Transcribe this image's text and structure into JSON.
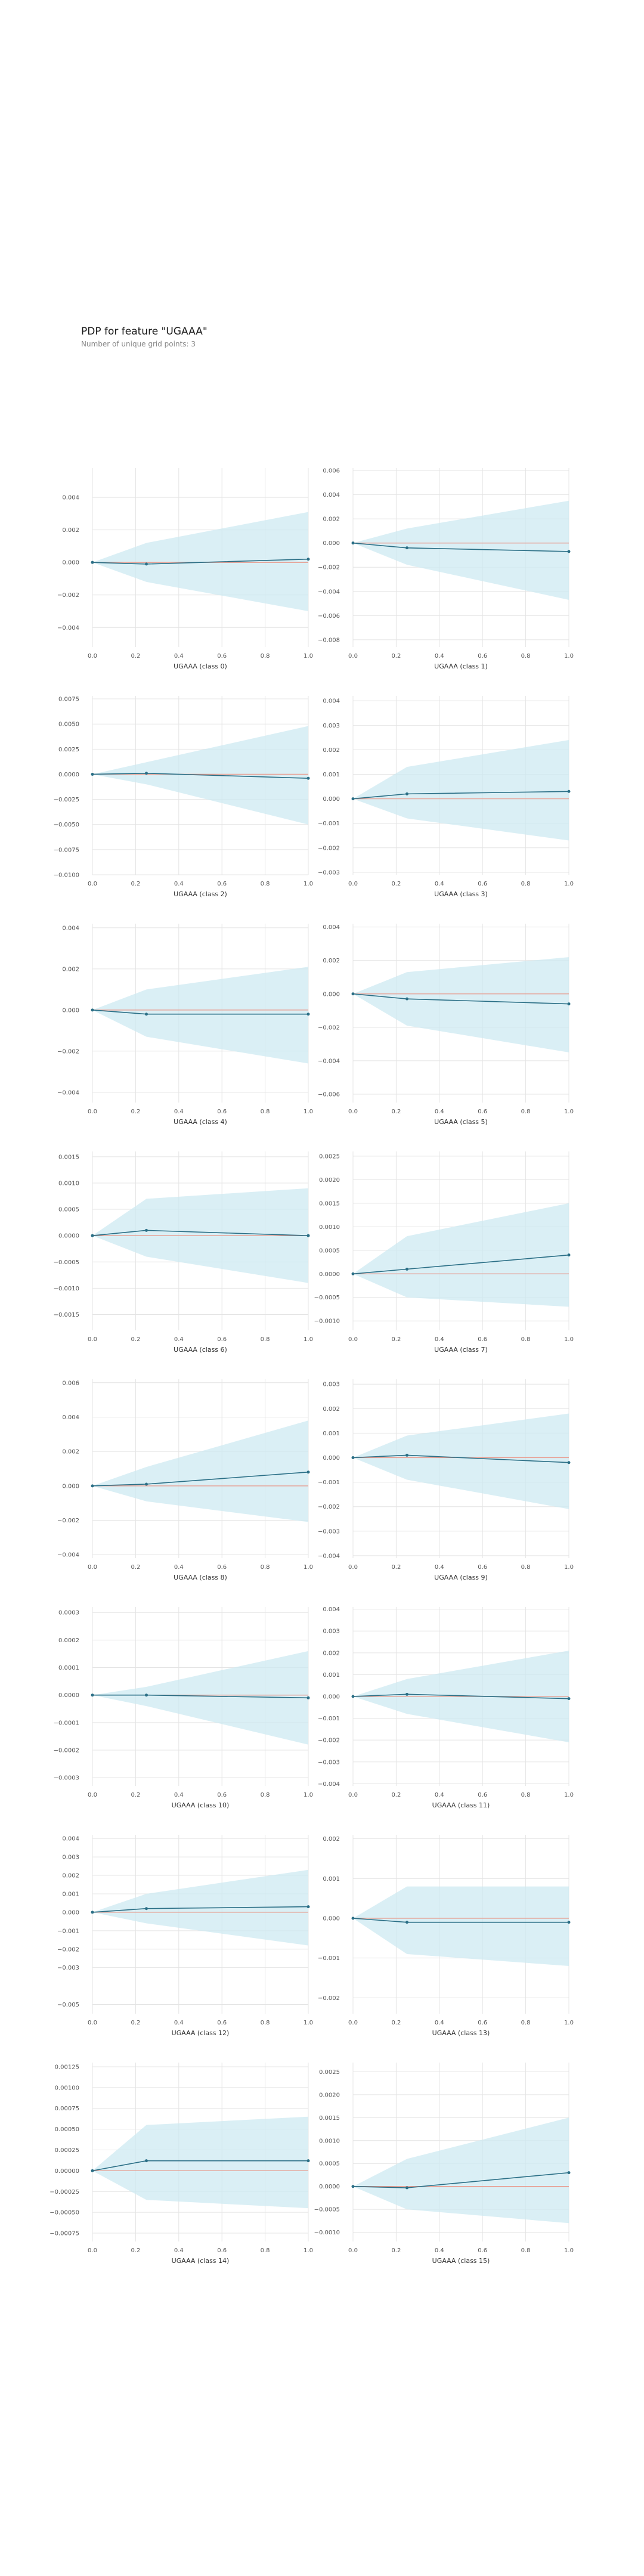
{
  "title": "PDP for feature \"UGAAA\"",
  "subtitle": "Number of unique grid points: 3",
  "colors": {
    "band": "#cde9f2",
    "line": "#2b6f86",
    "baseline": "#e89a8c",
    "grid": "#e4e4e4",
    "text": "#555555"
  },
  "chart_data": [
    {
      "type": "line",
      "xlabel": "UGAAA (class 0)",
      "x": [
        0,
        0.25,
        1
      ],
      "y": [
        0,
        -0.0001,
        0.0002
      ],
      "upper": [
        0,
        0.0012,
        0.0031
      ],
      "lower": [
        0,
        -0.0012,
        -0.003
      ],
      "ylim": [
        -0.0052,
        0.0058
      ],
      "yticks": [
        -0.004,
        -0.002,
        0,
        0.002,
        0.004
      ],
      "yticklabels": [
        "−0.004",
        "−0.002",
        "0.000",
        "0.002",
        "0.004"
      ],
      "xticks": [
        0,
        0.2,
        0.4,
        0.6,
        0.8,
        1
      ],
      "xticklabels": [
        "0.0",
        "0.2",
        "0.4",
        "0.6",
        "0.8",
        "1.0"
      ]
    },
    {
      "type": "line",
      "xlabel": "UGAAA (class 1)",
      "x": [
        0,
        0.25,
        1
      ],
      "y": [
        0,
        -0.0004,
        -0.0007
      ],
      "upper": [
        0,
        0.0012,
        0.0035
      ],
      "lower": [
        0,
        -0.0018,
        -0.0047
      ],
      "ylim": [
        -0.0086,
        0.0062
      ],
      "yticks": [
        -0.008,
        -0.006,
        -0.004,
        -0.002,
        0,
        0.002,
        0.004,
        0.006
      ],
      "yticklabels": [
        "−0.008",
        "−0.006",
        "−0.004",
        "−0.002",
        "0.000",
        "0.002",
        "0.004",
        "0.006"
      ],
      "xticks": [
        0,
        0.2,
        0.4,
        0.6,
        0.8,
        1
      ],
      "xticklabels": [
        "0.0",
        "0.2",
        "0.4",
        "0.6",
        "0.8",
        "1.0"
      ]
    },
    {
      "type": "line",
      "xlabel": "UGAAA (class 2)",
      "x": [
        0,
        0.25,
        1
      ],
      "y": [
        0,
        0.0001,
        -0.0004
      ],
      "upper": [
        0,
        0.0012,
        0.0048
      ],
      "lower": [
        0,
        -0.001,
        -0.005
      ],
      "ylim": [
        -0.01,
        0.0078
      ],
      "yticks": [
        -0.01,
        -0.0075,
        -0.005,
        -0.0025,
        0,
        0.0025,
        0.005,
        0.0075
      ],
      "yticklabels": [
        "−0.0100",
        "−0.0075",
        "−0.0050",
        "−0.0025",
        "0.0000",
        "0.0025",
        "0.0050",
        "0.0075"
      ],
      "xticks": [
        0,
        0.2,
        0.4,
        0.6,
        0.8,
        1
      ],
      "xticklabels": [
        "0.0",
        "0.2",
        "0.4",
        "0.6",
        "0.8",
        "1.0"
      ]
    },
    {
      "type": "line",
      "xlabel": "UGAAA (class 3)",
      "x": [
        0,
        0.25,
        1
      ],
      "y": [
        0,
        0.0002,
        0.0003
      ],
      "upper": [
        0,
        0.0013,
        0.0024
      ],
      "lower": [
        0,
        -0.0008,
        -0.0017
      ],
      "ylim": [
        -0.0031,
        0.0042
      ],
      "yticks": [
        -0.003,
        -0.002,
        -0.001,
        0,
        0.001,
        0.002,
        0.003,
        0.004
      ],
      "yticklabels": [
        "−0.003",
        "−0.002",
        "−0.001",
        "0.000",
        "0.001",
        "0.002",
        "0.003",
        "0.004"
      ],
      "xticks": [
        0,
        0.2,
        0.4,
        0.6,
        0.8,
        1
      ],
      "xticklabels": [
        "0.0",
        "0.2",
        "0.4",
        "0.6",
        "0.8",
        "1.0"
      ]
    },
    {
      "type": "line",
      "xlabel": "UGAAA (class 4)",
      "x": [
        0,
        0.25,
        1
      ],
      "y": [
        0,
        -0.0002,
        -0.0002
      ],
      "upper": [
        0,
        0.001,
        0.0021
      ],
      "lower": [
        0,
        -0.0013,
        -0.0026
      ],
      "ylim": [
        -0.0045,
        0.0042
      ],
      "yticks": [
        -0.004,
        -0.002,
        0,
        0.002,
        0.004
      ],
      "yticklabels": [
        "−0.004",
        "−0.002",
        "0.000",
        "0.002",
        "0.004"
      ],
      "xticks": [
        0,
        0.2,
        0.4,
        0.6,
        0.8,
        1
      ],
      "xticklabels": [
        "0.0",
        "0.2",
        "0.4",
        "0.6",
        "0.8",
        "1.0"
      ]
    },
    {
      "type": "line",
      "xlabel": "UGAAA (class 5)",
      "x": [
        0,
        0.25,
        1
      ],
      "y": [
        0,
        -0.0003,
        -0.0006
      ],
      "upper": [
        0,
        0.0013,
        0.0022
      ],
      "lower": [
        0,
        -0.0019,
        -0.0035
      ],
      "ylim": [
        -0.0065,
        0.0042
      ],
      "yticks": [
        -0.006,
        -0.004,
        -0.002,
        0,
        0.002,
        0.004
      ],
      "yticklabels": [
        "−0.006",
        "−0.004",
        "−0.002",
        "0.000",
        "0.002",
        "0.004"
      ],
      "xticks": [
        0,
        0.2,
        0.4,
        0.6,
        0.8,
        1
      ],
      "xticklabels": [
        "0.0",
        "0.2",
        "0.4",
        "0.6",
        "0.8",
        "1.0"
      ]
    },
    {
      "type": "line",
      "xlabel": "UGAAA (class 6)",
      "x": [
        0,
        0.25,
        1
      ],
      "y": [
        0,
        0.0001,
        0
      ],
      "upper": [
        0,
        0.0007,
        0.0009
      ],
      "lower": [
        0,
        -0.0004,
        -0.0009
      ],
      "ylim": [
        -0.0018,
        0.0016
      ],
      "yticks": [
        -0.0015,
        -0.001,
        -0.0005,
        0,
        0.0005,
        0.001,
        0.0015
      ],
      "yticklabels": [
        "−0.0015",
        "−0.0010",
        "−0.0005",
        "0.0000",
        "0.0005",
        "0.0010",
        "0.0015"
      ],
      "xticks": [
        0,
        0.2,
        0.4,
        0.6,
        0.8,
        1
      ],
      "xticklabels": [
        "0.0",
        "0.2",
        "0.4",
        "0.6",
        "0.8",
        "1.0"
      ]
    },
    {
      "type": "line",
      "xlabel": "UGAAA (class 7)",
      "x": [
        0,
        0.25,
        1
      ],
      "y": [
        0,
        0.0001,
        0.0004
      ],
      "upper": [
        0,
        0.0008,
        0.0015
      ],
      "lower": [
        0,
        -0.0005,
        -0.0007
      ],
      "ylim": [
        -0.0012,
        0.0026
      ],
      "yticks": [
        -0.001,
        -0.0005,
        0,
        0.0005,
        0.001,
        0.0015,
        0.002,
        0.0025
      ],
      "yticklabels": [
        "−0.0010",
        "−0.0005",
        "0.0000",
        "0.0005",
        "0.0010",
        "0.0015",
        "0.0020",
        "0.0025"
      ],
      "xticks": [
        0,
        0.2,
        0.4,
        0.6,
        0.8,
        1
      ],
      "xticklabels": [
        "0.0",
        "0.2",
        "0.4",
        "0.6",
        "0.8",
        "1.0"
      ]
    },
    {
      "type": "line",
      "xlabel": "UGAAA (class 8)",
      "x": [
        0,
        0.25,
        1
      ],
      "y": [
        0,
        0.0001,
        0.0008
      ],
      "upper": [
        0,
        0.0011,
        0.0038
      ],
      "lower": [
        0,
        -0.0009,
        -0.0021
      ],
      "ylim": [
        -0.0042,
        0.0062
      ],
      "yticks": [
        -0.004,
        -0.002,
        0,
        0.002,
        0.004,
        0.006
      ],
      "yticklabels": [
        "−0.004",
        "−0.002",
        "0.000",
        "0.002",
        "0.004",
        "0.006"
      ],
      "xticks": [
        0,
        0.2,
        0.4,
        0.6,
        0.8,
        1
      ],
      "xticklabels": [
        "0.0",
        "0.2",
        "0.4",
        "0.6",
        "0.8",
        "1.0"
      ]
    },
    {
      "type": "line",
      "xlabel": "UGAAA (class 9)",
      "x": [
        0,
        0.25,
        1
      ],
      "y": [
        0,
        0.0001,
        -0.0002
      ],
      "upper": [
        0,
        0.0009,
        0.0018
      ],
      "lower": [
        0,
        -0.0009,
        -0.0021
      ],
      "ylim": [
        -0.0041,
        0.0032
      ],
      "yticks": [
        -0.004,
        -0.003,
        -0.002,
        -0.001,
        0,
        0.001,
        0.002,
        0.003
      ],
      "yticklabels": [
        "−0.004",
        "−0.003",
        "−0.002",
        "−0.001",
        "0.000",
        "0.001",
        "0.002",
        "0.003"
      ],
      "xticks": [
        0,
        0.2,
        0.4,
        0.6,
        0.8,
        1
      ],
      "xticklabels": [
        "0.0",
        "0.2",
        "0.4",
        "0.6",
        "0.8",
        "1.0"
      ]
    },
    {
      "type": "line",
      "xlabel": "UGAAA (class 10)",
      "x": [
        0,
        0.25,
        1
      ],
      "y": [
        0,
        0,
        -1e-05
      ],
      "upper": [
        0,
        3e-05,
        0.00016
      ],
      "lower": [
        0,
        -4e-05,
        -0.00018
      ],
      "ylim": [
        -0.00033,
        0.00032
      ],
      "yticks": [
        -0.0003,
        -0.0002,
        -0.0001,
        0,
        0.0001,
        0.0002,
        0.0003
      ],
      "yticklabels": [
        "−0.0003",
        "−0.0002",
        "−0.0001",
        "0.0000",
        "0.0001",
        "0.0002",
        "0.0003"
      ],
      "xticks": [
        0,
        0.2,
        0.4,
        0.6,
        0.8,
        1
      ],
      "xticklabels": [
        "0.0",
        "0.2",
        "0.4",
        "0.6",
        "0.8",
        "1.0"
      ]
    },
    {
      "type": "line",
      "xlabel": "UGAAA (class 11)",
      "x": [
        0,
        0.25,
        1
      ],
      "y": [
        0,
        0.0001,
        -0.0001
      ],
      "upper": [
        0,
        0.0008,
        0.0021
      ],
      "lower": [
        0,
        -0.0008,
        -0.0021
      ],
      "ylim": [
        -0.0041,
        0.0041
      ],
      "yticks": [
        -0.004,
        -0.003,
        -0.002,
        -0.001,
        0,
        0.001,
        0.002,
        0.003,
        0.004
      ],
      "yticklabels": [
        "−0.004",
        "−0.003",
        "−0.002",
        "−0.001",
        "0.000",
        "0.001",
        "0.002",
        "0.003",
        "0.004"
      ],
      "xticks": [
        0,
        0.2,
        0.4,
        0.6,
        0.8,
        1
      ],
      "xticklabels": [
        "0.0",
        "0.2",
        "0.4",
        "0.6",
        "0.8",
        "1.0"
      ]
    },
    {
      "type": "line",
      "xlabel": "UGAAA (class 12)",
      "x": [
        0,
        0.25,
        1
      ],
      "y": [
        0,
        0.0002,
        0.0003
      ],
      "upper": [
        0,
        0.001,
        0.0023
      ],
      "lower": [
        0,
        -0.0006,
        -0.0018
      ],
      "ylim": [
        -0.0055,
        0.0042
      ],
      "yticks": [
        -0.005,
        -0.003,
        -0.002,
        -0.001,
        0,
        0.001,
        0.002,
        0.003,
        0.004
      ],
      "yticklabels": [
        "−0.005",
        "−0.003",
        "−0.002",
        "−0.001",
        "0.000",
        "0.001",
        "0.002",
        "0.003",
        "0.004"
      ],
      "xticks": [
        0,
        0.2,
        0.4,
        0.6,
        0.8,
        1
      ],
      "xticklabels": [
        "0.0",
        "0.2",
        "0.4",
        "0.6",
        "0.8",
        "1.0"
      ]
    },
    {
      "type": "line",
      "xlabel": "UGAAA (class 13)",
      "x": [
        0,
        0.25,
        1
      ],
      "y": [
        0,
        -0.0001,
        -0.0001
      ],
      "upper": [
        0,
        0.0008,
        0.0008
      ],
      "lower": [
        0,
        -0.0009,
        -0.0012
      ],
      "ylim": [
        -0.0024,
        0.0021
      ],
      "yticks": [
        -0.002,
        -0.001,
        0,
        0.001,
        0.002
      ],
      "yticklabels": [
        "−0.002",
        "−0.001",
        "0.000",
        "0.001",
        "0.002"
      ],
      "xticks": [
        0,
        0.2,
        0.4,
        0.6,
        0.8,
        1
      ],
      "xticklabels": [
        "0.0",
        "0.2",
        "0.4",
        "0.6",
        "0.8",
        "1.0"
      ]
    },
    {
      "type": "line",
      "xlabel": "UGAAA (class 14)",
      "x": [
        0,
        0.25,
        1
      ],
      "y": [
        0,
        0.00012,
        0.00012
      ],
      "upper": [
        0,
        0.00055,
        0.00065
      ],
      "lower": [
        0,
        -0.00035,
        -0.00045
      ],
      "ylim": [
        -0.00085,
        0.0013
      ],
      "yticks": [
        -0.00075,
        -0.0005,
        -0.00025,
        0,
        0.00025,
        0.0005,
        0.00075,
        0.001,
        0.00125
      ],
      "yticklabels": [
        "−0.00075",
        "−0.00050",
        "−0.00025",
        "0.00000",
        "0.00025",
        "0.00050",
        "0.00075",
        "0.00100",
        "0.00125"
      ],
      "xticks": [
        0,
        0.2,
        0.4,
        0.6,
        0.8,
        1
      ],
      "xticklabels": [
        "0.0",
        "0.2",
        "0.4",
        "0.6",
        "0.8",
        "1.0"
      ]
    },
    {
      "type": "line",
      "xlabel": "UGAAA (class 15)",
      "x": [
        0,
        0.25,
        1
      ],
      "y": [
        0,
        -3e-05,
        0.0003
      ],
      "upper": [
        0,
        0.0006,
        0.0015
      ],
      "lower": [
        0,
        -0.0005,
        -0.0008
      ],
      "ylim": [
        -0.0012,
        0.0027
      ],
      "yticks": [
        -0.001,
        -0.0005,
        0,
        0.0005,
        0.001,
        0.0015,
        0.002,
        0.0025
      ],
      "yticklabels": [
        "−0.0010",
        "−0.0005",
        "0.0000",
        "0.0005",
        "0.0010",
        "0.0015",
        "0.0020",
        "0.0025"
      ],
      "xticks": [
        0,
        0.2,
        0.4,
        0.6,
        0.8,
        1
      ],
      "xticklabels": [
        "0.0",
        "0.2",
        "0.4",
        "0.6",
        "0.8",
        "1.0"
      ]
    }
  ]
}
